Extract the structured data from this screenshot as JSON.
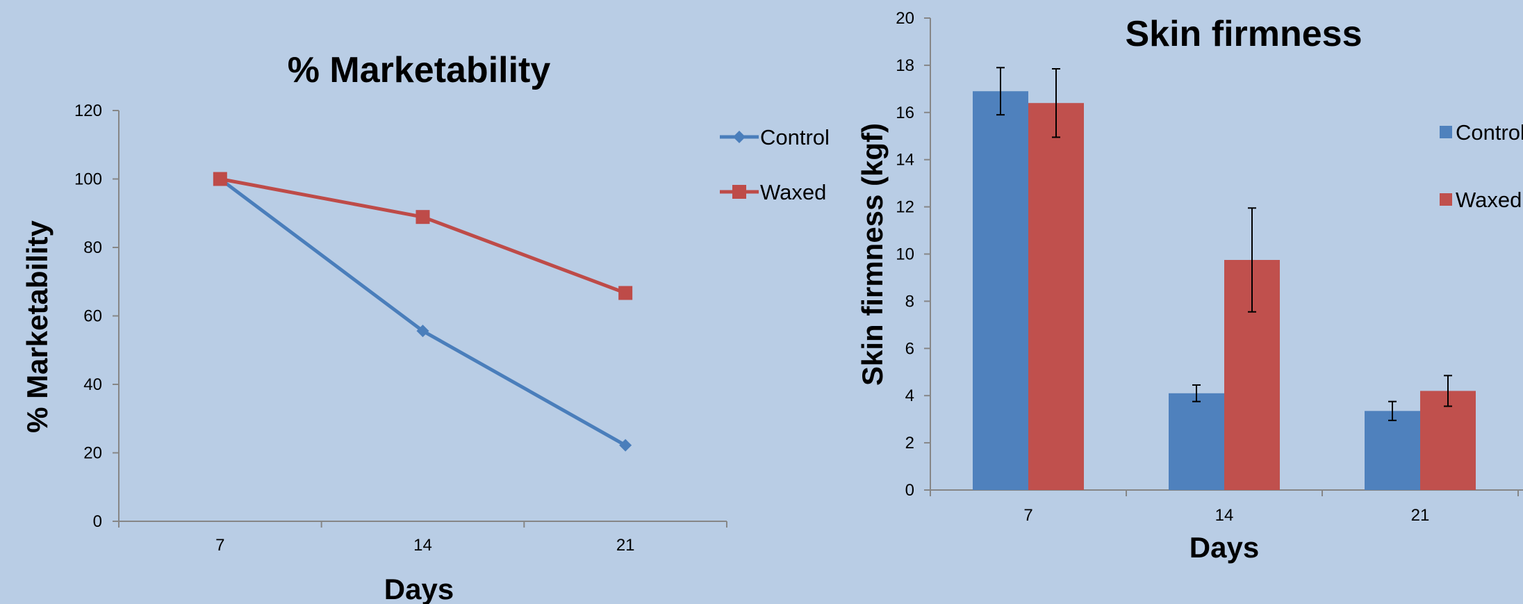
{
  "chart_data": [
    {
      "type": "line",
      "title": "% Marketability",
      "xlabel": "Days",
      "ylabel": "% Marketability",
      "categories": [
        "7",
        "14",
        "21"
      ],
      "ylim": [
        0,
        120
      ],
      "yticks": [
        0,
        20,
        40,
        60,
        80,
        100,
        120
      ],
      "grid": false,
      "legend": "right",
      "series": [
        {
          "name": "Control",
          "values": [
            100,
            55.6,
            22.2
          ],
          "color": "#4a7ebb",
          "marker": "diamond"
        },
        {
          "name": "Waxed",
          "values": [
            100,
            88.9,
            66.7
          ],
          "color": "#be4b48",
          "marker": "square"
        }
      ]
    },
    {
      "type": "bar",
      "title": "Skin firmness",
      "xlabel": "Days",
      "ylabel": "Skin firmness (kgf)",
      "categories": [
        "7",
        "14",
        "21"
      ],
      "ylim": [
        0,
        20
      ],
      "yticks": [
        0,
        2,
        4,
        6,
        8,
        10,
        12,
        14,
        16,
        18,
        20
      ],
      "grid": false,
      "legend": "right",
      "series": [
        {
          "name": "Control",
          "values": [
            16.9,
            4.1,
            3.35
          ],
          "errors": [
            1.0,
            0.35,
            0.4
          ],
          "color": "#4f81bd"
        },
        {
          "name": "Waxed",
          "values": [
            16.4,
            9.75,
            4.2
          ],
          "errors": [
            1.45,
            2.2,
            0.65
          ],
          "color": "#c0504d"
        }
      ]
    }
  ]
}
